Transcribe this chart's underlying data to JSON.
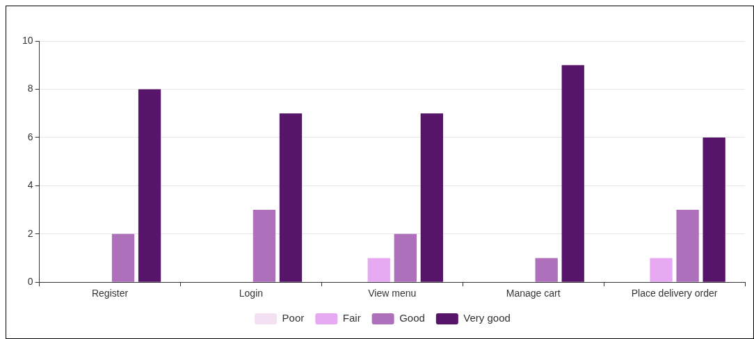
{
  "chart_data": {
    "type": "bar",
    "categories": [
      "Register",
      "Login",
      "View menu",
      "Manage cart",
      "Place delivery order"
    ],
    "series": [
      {
        "name": "Poor",
        "color": "#f3e1f3",
        "values": [
          0,
          0,
          0,
          0,
          0
        ]
      },
      {
        "name": "Fair",
        "color": "#e8a9f3",
        "values": [
          0,
          0,
          1,
          0,
          1
        ]
      },
      {
        "name": "Good",
        "color": "#ae6fbb",
        "values": [
          2,
          3,
          2,
          1,
          3
        ]
      },
      {
        "name": "Very good",
        "color": "#571569",
        "values": [
          8,
          7,
          7,
          9,
          6
        ]
      }
    ],
    "ylim": [
      0,
      10
    ],
    "yticks": [
      0,
      2,
      4,
      6,
      8,
      10
    ],
    "grid": "y",
    "legend": "bottom"
  }
}
